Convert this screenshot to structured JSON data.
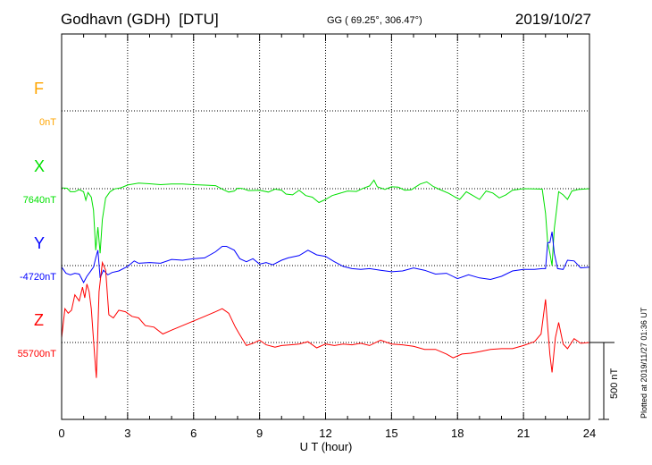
{
  "header": {
    "station": "Godhavn (GDH)",
    "institute": "[DTU]",
    "coords": "GG ( 69.25°, 306.47°)",
    "date": "2019/10/27"
  },
  "footer": {
    "plotted": "Plotted at 2019/11/27 01:36 UT"
  },
  "chart_data": {
    "type": "line",
    "title": "",
    "xlabel": "U T (hour)",
    "xlim": [
      0,
      24
    ],
    "xticks": [
      0,
      3,
      6,
      9,
      12,
      15,
      18,
      21,
      24
    ],
    "xtick_labels": [
      "0",
      "3",
      "6",
      "9",
      "12",
      "15",
      "18",
      "21",
      "24"
    ],
    "grid": true,
    "scale_bar": {
      "label": "500 nT",
      "value_nT": 500
    },
    "components": [
      {
        "name": "F",
        "baseline_label": "0nT",
        "color": "#ffa500",
        "baseline_nT": 0
      },
      {
        "name": "X",
        "baseline_label": "7640nT",
        "color": "#00e000",
        "baseline_nT": 7640
      },
      {
        "name": "Y",
        "baseline_label": "-4720nT",
        "color": "#0000ff",
        "baseline_nT": -4720
      },
      {
        "name": "Z",
        "baseline_label": "55700nT",
        "color": "#ff0000",
        "baseline_nT": 55700
      }
    ],
    "series": [
      {
        "name": "X",
        "color": "#00e000",
        "baseline_nT": 7640,
        "points": [
          [
            0,
            5
          ],
          [
            0.25,
            3
          ],
          [
            0.4,
            -20
          ],
          [
            0.6,
            -20
          ],
          [
            0.8,
            -6
          ],
          [
            1.0,
            -20
          ],
          [
            1.1,
            -75
          ],
          [
            1.2,
            -25
          ],
          [
            1.35,
            -55
          ],
          [
            1.45,
            -140
          ],
          [
            1.55,
            -400
          ],
          [
            1.65,
            -250
          ],
          [
            1.75,
            -420
          ],
          [
            1.85,
            -200
          ],
          [
            2.0,
            -60
          ],
          [
            2.2,
            -20
          ],
          [
            2.4,
            -2
          ],
          [
            2.7,
            6
          ],
          [
            3.0,
            24
          ],
          [
            3.5,
            36
          ],
          [
            4.0,
            32
          ],
          [
            4.5,
            26
          ],
          [
            5.0,
            30
          ],
          [
            5.5,
            30
          ],
          [
            6.0,
            26
          ],
          [
            6.5,
            23
          ],
          [
            7.0,
            20
          ],
          [
            7.4,
            -10
          ],
          [
            7.6,
            -22
          ],
          [
            7.85,
            -15
          ],
          [
            8.0,
            3
          ],
          [
            8.2,
            2
          ],
          [
            8.5,
            -12
          ],
          [
            9.0,
            -10
          ],
          [
            9.4,
            -22
          ],
          [
            9.7,
            -3
          ],
          [
            10.0,
            -10
          ],
          [
            10.2,
            -35
          ],
          [
            10.5,
            -40
          ],
          [
            10.8,
            -10
          ],
          [
            11.1,
            -45
          ],
          [
            11.4,
            -55
          ],
          [
            11.7,
            -90
          ],
          [
            12.0,
            -70
          ],
          [
            12.3,
            -45
          ],
          [
            12.6,
            -32
          ],
          [
            13.0,
            -15
          ],
          [
            13.4,
            -18
          ],
          [
            13.7,
            2
          ],
          [
            14.0,
            18
          ],
          [
            14.2,
            55
          ],
          [
            14.35,
            12
          ],
          [
            14.7,
            -5
          ],
          [
            15.0,
            12
          ],
          [
            15.3,
            10
          ],
          [
            15.6,
            -10
          ],
          [
            15.9,
            -7
          ],
          [
            16.3,
            30
          ],
          [
            16.6,
            44
          ],
          [
            16.9,
            14
          ],
          [
            17.2,
            -6
          ],
          [
            17.6,
            -30
          ],
          [
            17.9,
            -55
          ],
          [
            18.1,
            -70
          ],
          [
            18.4,
            -20
          ],
          [
            18.7,
            -45
          ],
          [
            19.0,
            -70
          ],
          [
            19.3,
            -15
          ],
          [
            19.6,
            -28
          ],
          [
            19.9,
            -60
          ],
          [
            20.2,
            -40
          ],
          [
            20.5,
            -10
          ],
          [
            21.0,
            0
          ],
          [
            21.5,
            -2
          ],
          [
            21.85,
            -3
          ],
          [
            22.0,
            -160
          ],
          [
            22.1,
            -350
          ],
          [
            22.2,
            -420
          ],
          [
            22.3,
            -500
          ],
          [
            22.4,
            -260
          ],
          [
            22.5,
            -140
          ],
          [
            22.6,
            -20
          ],
          [
            22.8,
            -40
          ],
          [
            23.0,
            -70
          ],
          [
            23.2,
            -15
          ],
          [
            23.5,
            -5
          ],
          [
            24.0,
            0
          ]
        ]
      },
      {
        "name": "Y",
        "color": "#0000ff",
        "baseline_nT": -4720,
        "points": [
          [
            0,
            -10
          ],
          [
            0.2,
            -50
          ],
          [
            0.4,
            -60
          ],
          [
            0.6,
            -50
          ],
          [
            0.8,
            -55
          ],
          [
            1.0,
            -110
          ],
          [
            1.15,
            -70
          ],
          [
            1.3,
            -40
          ],
          [
            1.45,
            -10
          ],
          [
            1.55,
            50
          ],
          [
            1.65,
            100
          ],
          [
            1.75,
            -80
          ],
          [
            1.9,
            -30
          ],
          [
            2.1,
            -60
          ],
          [
            2.3,
            -45
          ],
          [
            2.6,
            -35
          ],
          [
            3.0,
            -5
          ],
          [
            3.3,
            30
          ],
          [
            3.5,
            15
          ],
          [
            4.0,
            20
          ],
          [
            4.5,
            15
          ],
          [
            5.0,
            40
          ],
          [
            5.5,
            35
          ],
          [
            6.0,
            45
          ],
          [
            6.5,
            50
          ],
          [
            7.0,
            90
          ],
          [
            7.3,
            125
          ],
          [
            7.5,
            125
          ],
          [
            7.85,
            100
          ],
          [
            8.1,
            45
          ],
          [
            8.4,
            25
          ],
          [
            8.7,
            45
          ],
          [
            9.0,
            10
          ],
          [
            9.3,
            20
          ],
          [
            9.6,
            5
          ],
          [
            10.0,
            35
          ],
          [
            10.3,
            50
          ],
          [
            10.8,
            65
          ],
          [
            11.2,
            100
          ],
          [
            11.6,
            70
          ],
          [
            12.0,
            60
          ],
          [
            12.4,
            25
          ],
          [
            12.8,
            -5
          ],
          [
            13.2,
            -20
          ],
          [
            13.6,
            -25
          ],
          [
            14.0,
            -20
          ],
          [
            14.5,
            -30
          ],
          [
            15.0,
            -40
          ],
          [
            15.5,
            -35
          ],
          [
            16.0,
            -15
          ],
          [
            16.5,
            -30
          ],
          [
            17.0,
            -55
          ],
          [
            17.5,
            -50
          ],
          [
            18.0,
            -85
          ],
          [
            18.5,
            -60
          ],
          [
            19.0,
            -80
          ],
          [
            19.5,
            -90
          ],
          [
            20.0,
            -70
          ],
          [
            20.5,
            -35
          ],
          [
            21.0,
            -25
          ],
          [
            21.5,
            -25
          ],
          [
            21.85,
            -20
          ],
          [
            22.0,
            -20
          ],
          [
            22.1,
            150
          ],
          [
            22.2,
            150
          ],
          [
            22.3,
            220
          ],
          [
            22.4,
            80
          ],
          [
            22.55,
            -20
          ],
          [
            22.8,
            -25
          ],
          [
            23.0,
            35
          ],
          [
            23.3,
            30
          ],
          [
            23.6,
            -15
          ],
          [
            24.0,
            -10
          ]
        ]
      },
      {
        "name": "Z",
        "color": "#ff0000",
        "baseline_nT": 55700,
        "points": [
          [
            0,
            30
          ],
          [
            0.15,
            220
          ],
          [
            0.3,
            190
          ],
          [
            0.45,
            210
          ],
          [
            0.6,
            310
          ],
          [
            0.8,
            270
          ],
          [
            0.95,
            360
          ],
          [
            1.05,
            290
          ],
          [
            1.15,
            380
          ],
          [
            1.25,
            330
          ],
          [
            1.35,
            220
          ],
          [
            1.5,
            -80
          ],
          [
            1.58,
            -230
          ],
          [
            1.7,
            330
          ],
          [
            1.85,
            520
          ],
          [
            2.0,
            470
          ],
          [
            2.15,
            180
          ],
          [
            2.35,
            160
          ],
          [
            2.6,
            210
          ],
          [
            2.9,
            200
          ],
          [
            3.2,
            170
          ],
          [
            3.5,
            160
          ],
          [
            3.8,
            110
          ],
          [
            4.2,
            100
          ],
          [
            4.6,
            55
          ],
          [
            5.0,
            80
          ],
          [
            5.5,
            110
          ],
          [
            6.0,
            140
          ],
          [
            6.5,
            170
          ],
          [
            7.0,
            200
          ],
          [
            7.3,
            220
          ],
          [
            7.6,
            190
          ],
          [
            7.9,
            100
          ],
          [
            8.1,
            50
          ],
          [
            8.4,
            -20
          ],
          [
            8.7,
            -5
          ],
          [
            9.0,
            15
          ],
          [
            9.3,
            -15
          ],
          [
            9.7,
            -30
          ],
          [
            10.0,
            -20
          ],
          [
            10.4,
            -15
          ],
          [
            10.8,
            -10
          ],
          [
            11.2,
            5
          ],
          [
            11.6,
            -35
          ],
          [
            12.0,
            -10
          ],
          [
            12.4,
            -20
          ],
          [
            12.8,
            -10
          ],
          [
            13.2,
            -15
          ],
          [
            13.6,
            -5
          ],
          [
            14.0,
            -20
          ],
          [
            14.5,
            15
          ],
          [
            15.0,
            -10
          ],
          [
            15.5,
            -15
          ],
          [
            16.0,
            -25
          ],
          [
            16.5,
            -45
          ],
          [
            17.0,
            -45
          ],
          [
            17.5,
            -75
          ],
          [
            17.8,
            -100
          ],
          [
            18.2,
            -75
          ],
          [
            18.6,
            -70
          ],
          [
            19.0,
            -60
          ],
          [
            19.5,
            -45
          ],
          [
            20.0,
            -40
          ],
          [
            20.5,
            -40
          ],
          [
            21.0,
            -20
          ],
          [
            21.5,
            5
          ],
          [
            21.8,
            55
          ],
          [
            22.0,
            280
          ],
          [
            22.1,
            100
          ],
          [
            22.2,
            -80
          ],
          [
            22.3,
            -195
          ],
          [
            22.45,
            30
          ],
          [
            22.6,
            130
          ],
          [
            22.8,
            -10
          ],
          [
            23.0,
            -40
          ],
          [
            23.3,
            25
          ],
          [
            23.6,
            -5
          ],
          [
            24.0,
            0
          ]
        ]
      }
    ]
  }
}
